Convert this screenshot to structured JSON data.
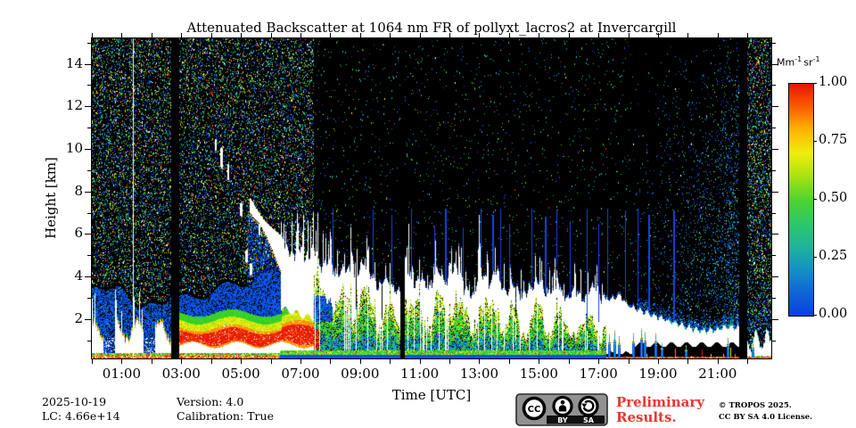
{
  "title": "Attenuated Backscatter at 1064 nm FR of pollyxt_lacros2 at Invercargill",
  "axes": {
    "x_label": "Time [UTC]",
    "y_label": "Height [km]",
    "x_tick_hours": [
      0,
      1,
      2,
      3,
      4,
      5,
      6,
      7,
      8,
      9,
      10,
      11,
      12,
      13,
      14,
      15,
      16,
      17,
      18,
      19,
      20,
      21,
      22
    ],
    "x_labeled_ticks": [
      {
        "hour": 1,
        "label": "01:00"
      },
      {
        "hour": 3,
        "label": "03:00"
      },
      {
        "hour": 5,
        "label": "05:00"
      },
      {
        "hour": 7,
        "label": "07:00"
      },
      {
        "hour": 9,
        "label": "09:00"
      },
      {
        "hour": 11,
        "label": "11:00"
      },
      {
        "hour": 13,
        "label": "13:00"
      },
      {
        "hour": 15,
        "label": "15:00"
      },
      {
        "hour": 17,
        "label": "17:00"
      },
      {
        "hour": 19,
        "label": "19:00"
      },
      {
        "hour": 21,
        "label": "21:00"
      }
    ],
    "y_major_ticks": [
      {
        "km": 2,
        "label": "2"
      },
      {
        "km": 4,
        "label": "4"
      },
      {
        "km": 6,
        "label": "6"
      },
      {
        "km": 8,
        "label": "8"
      },
      {
        "km": 10,
        "label": "10"
      },
      {
        "km": 12,
        "label": "12"
      },
      {
        "km": 14,
        "label": "14"
      }
    ],
    "y_minor_km": [
      1,
      3,
      5,
      7,
      9,
      11,
      13,
      15
    ]
  },
  "colorbar": {
    "unit_base_1": "Mm",
    "unit_exp_1": "-1",
    "unit_base_2": "sr",
    "unit_exp_2": "-1",
    "ticks": [
      {
        "value": 1.0,
        "label": "1.00"
      },
      {
        "value": 0.75,
        "label": "0.75"
      },
      {
        "value": 0.5,
        "label": "0.50"
      },
      {
        "value": 0.25,
        "label": "0.25"
      },
      {
        "value": 0.0,
        "label": "0.00"
      }
    ]
  },
  "footer": {
    "date": "2025-10-19",
    "lc": "LC: 4.66e+14",
    "version": "Version: 4.0",
    "calibration": "Calibration: True",
    "preliminary_line1": "Preliminary",
    "preliminary_line2": "Results.",
    "copyright_line1": "© TROPOS 2025.",
    "copyright_line2": "CC BY SA 4.0 License.",
    "license_badge": {
      "cc": "CC",
      "by": "BY",
      "sa": "SA"
    }
  },
  "colors": {
    "preliminary_red": "#e8372f",
    "badge_gray": "#919191",
    "text": "#000000"
  },
  "chart_data": {
    "type": "heatmap",
    "title": "Attenuated Backscatter at 1064 nm FR of pollyxt_lacros2 at Invercargill",
    "xlabel": "Time [UTC]",
    "ylabel": "Height [km]",
    "x_range_hours": [
      0,
      22.8
    ],
    "y_range_km": [
      0.15,
      15.2
    ],
    "value_label": "attenuated backscatter",
    "value_unit": "Mm-1 sr-1",
    "value_range": [
      0.0,
      1.0
    ],
    "background_color": "#000000",
    "oversaturation_color": "#ffffff",
    "colormap_stops": [
      [
        0.0,
        "#0a3fe0"
      ],
      [
        0.1,
        "#0e66d6"
      ],
      [
        0.2,
        "#1691c4"
      ],
      [
        0.3,
        "#1fb49b"
      ],
      [
        0.4,
        "#2cc868"
      ],
      [
        0.5,
        "#4fd32e"
      ],
      [
        0.6,
        "#a8e212"
      ],
      [
        0.7,
        "#eeee0a"
      ],
      [
        0.8,
        "#ffb400"
      ],
      [
        0.9,
        "#fb5d00"
      ],
      [
        1.0,
        "#e81400"
      ]
    ],
    "palette": {
      "haze_blue": "#0c4ce2",
      "haze_blue2": "#0a5fe8",
      "deep_blue": "#0838c0",
      "spike_blue": "#1546e8",
      "stripe_blue": "#0b50ee",
      "teal": "#17a8b8",
      "cyan": "#22b8dc",
      "green": "#2ecc2e",
      "green2": "#49d81e",
      "yellow": "#eeee10",
      "yellowgreen": "#a8e012",
      "orange": "#ff9400",
      "orange2": "#fb6400",
      "red": "#e81808",
      "white": "#ffffff"
    },
    "noise_palettes": {
      "day": [
        [
          "#0d4ce0",
          0.26
        ],
        [
          "#22b8dc",
          0.14
        ],
        [
          "#17a8b8",
          0.12
        ],
        [
          "#2ecc2e",
          0.16
        ],
        [
          "#a8e012",
          0.07
        ],
        [
          "#eeee10",
          0.07
        ],
        [
          "#ff9400",
          0.05
        ],
        [
          "#e81808",
          0.05
        ],
        [
          "#ffffff",
          0.08
        ]
      ],
      "night": [
        [
          "#2ecc2e",
          0.34
        ],
        [
          "#17a8b8",
          0.26
        ],
        [
          "#22b8dc",
          0.14
        ],
        [
          "#0d4ce0",
          0.2
        ],
        [
          "#eeee10",
          0.03
        ],
        [
          "#e81808",
          0.03
        ]
      ],
      "dawn": [
        [
          "#0d4ce0",
          0.42
        ],
        [
          "#17a8b8",
          0.26
        ],
        [
          "#22b8dc",
          0.16
        ],
        [
          "#2ecc2e",
          0.1
        ],
        [
          "#a8e012",
          0.03
        ],
        [
          "#ffffff",
          0.03
        ]
      ]
    },
    "data_gap_hours": [
      [
        2.66,
        2.93
      ],
      [
        10.35,
        10.5
      ],
      [
        21.71,
        21.98
      ]
    ],
    "white_line_hour": 1.376,
    "day_noise_end_hour": 7.44,
    "dawn_start_hour": 18.1,
    "cloud_top_profile": [
      [
        6.45,
        5.6
      ],
      [
        6.7,
        4.9
      ],
      [
        6.95,
        5.4
      ],
      [
        7.2,
        4.9
      ],
      [
        7.45,
        5.3
      ],
      [
        7.7,
        4.4
      ],
      [
        7.95,
        4.8
      ],
      [
        8.2,
        4.0
      ],
      [
        8.5,
        4.4
      ],
      [
        8.8,
        3.8
      ],
      [
        9.1,
        4.7
      ],
      [
        9.35,
        4.1
      ],
      [
        9.6,
        3.5
      ],
      [
        9.85,
        3.9
      ],
      [
        10.1,
        3.4
      ],
      [
        10.32,
        3.2
      ],
      [
        10.5,
        4.8
      ],
      [
        10.75,
        3.6
      ],
      [
        11.0,
        3.9
      ],
      [
        11.3,
        3.4
      ],
      [
        11.6,
        4.3
      ],
      [
        11.9,
        3.6
      ],
      [
        12.2,
        4.6
      ],
      [
        12.5,
        3.4
      ],
      [
        12.8,
        2.9
      ],
      [
        13.0,
        4.4
      ],
      [
        13.3,
        3.6
      ],
      [
        13.6,
        4.2
      ],
      [
        13.85,
        3.1
      ],
      [
        14.1,
        3.7
      ],
      [
        14.4,
        3.0
      ],
      [
        14.7,
        3.5
      ],
      [
        15.0,
        3.9
      ],
      [
        15.3,
        3.1
      ],
      [
        15.6,
        3.6
      ],
      [
        15.9,
        2.9
      ],
      [
        16.2,
        3.4
      ],
      [
        16.5,
        2.8
      ],
      [
        16.8,
        3.6
      ],
      [
        17.1,
        3.0
      ],
      [
        17.4,
        2.9
      ],
      [
        17.7,
        3.1
      ],
      [
        18.0,
        2.6
      ],
      [
        18.4,
        2.4
      ],
      [
        18.9,
        2.15
      ],
      [
        19.4,
        1.9
      ],
      [
        19.9,
        1.65
      ],
      [
        20.4,
        1.45
      ],
      [
        20.9,
        1.5
      ],
      [
        21.3,
        1.65
      ],
      [
        21.68,
        1.6
      ],
      [
        21.98,
        1.5
      ],
      [
        22.2,
        1.15
      ],
      [
        22.5,
        1.35
      ],
      [
        22.8,
        1.05
      ]
    ],
    "blue_spikes": [
      [
        8.07,
        7.2
      ],
      [
        9.42,
        7.15
      ],
      [
        10.06,
        6.9
      ],
      [
        10.7,
        7.2
      ],
      [
        11.5,
        6.4
      ],
      [
        11.85,
        7.2
      ],
      [
        12.45,
        6.3
      ],
      [
        13.05,
        7.2
      ],
      [
        13.42,
        6.9
      ],
      [
        13.7,
        7.2
      ],
      [
        14.0,
        6.5
      ],
      [
        14.75,
        7.2
      ],
      [
        15.2,
        6.8
      ],
      [
        15.6,
        7.15
      ],
      [
        16.05,
        6.6
      ],
      [
        16.6,
        7.2
      ],
      [
        17.0,
        6.5
      ],
      [
        17.28,
        7.2
      ],
      [
        17.88,
        7.1
      ],
      [
        18.3,
        7.2
      ],
      [
        18.68,
        6.9
      ],
      [
        19.5,
        7.1
      ]
    ],
    "white_spikes": [
      [
        10.62,
        6.5
      ],
      [
        12.98,
        6.9
      ]
    ],
    "virga": {
      "start_hour": 3.8,
      "top_km": 10.55,
      "slope_km_per_hour": -2.08,
      "blobs": [
        [
          4.15,
          10.2,
          0.04,
          0.3
        ],
        [
          4.33,
          9.6,
          0.06,
          0.5
        ],
        [
          4.56,
          8.9,
          0.05,
          0.4
        ],
        [
          5.0,
          7.15,
          0.05,
          0.35
        ],
        [
          5.18,
          4.95,
          0.06,
          0.3
        ],
        [
          5.33,
          4.35,
          0.05,
          0.3
        ],
        [
          5.62,
          6.2,
          0.04,
          0.3
        ]
      ]
    },
    "bottom_spikes": [
      [
        17.35,
        1.2
      ],
      [
        17.52,
        1.35
      ],
      [
        17.68,
        1.1
      ],
      [
        18.15,
        1.25
      ],
      [
        18.42,
        1.5
      ],
      [
        18.55,
        1.3
      ],
      [
        18.9,
        1.25
      ],
      [
        19.12,
        0.8
      ],
      [
        19.92,
        0.7
      ],
      [
        21.32,
        1.05
      ],
      [
        22.18,
        0.8
      ]
    ],
    "surface_layer": {
      "day_top_km": 2.3,
      "red_band_km": [
        0.78,
        1.6
      ]
    },
    "notes": [
      "Daytime background noise speckle 00:00-07:30 and after 21:40",
      "Boundary-layer aerosol with strong backscatter (red/white) below 2 km from 00:00 to 07:30",
      "Ice virga streak descending from ~10 km at 04:00 to cloud top near 07:00",
      "Liquid cloud / precipitation layer descending from ~5 km (07:30) to ~1.5 km (21:00)",
      "Narrow blue spikes up to ~7.2 km between 08:00 and 19:30",
      "Black vertical bars are measurement gaps near 02:40, 10:20 and 21:45",
      "Thin white vertical line near 01:22"
    ]
  }
}
